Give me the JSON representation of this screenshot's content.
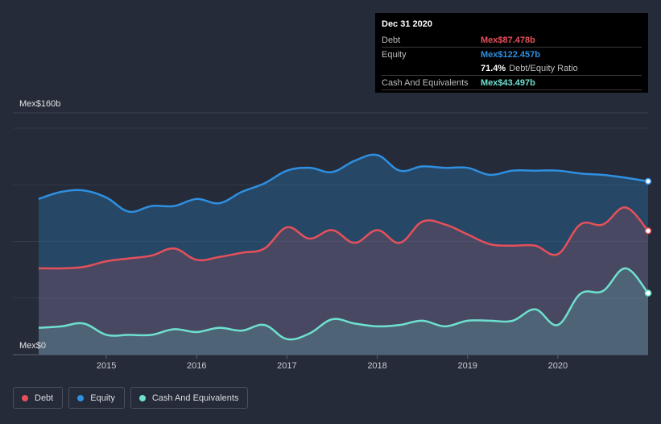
{
  "tooltip": {
    "date": "Dec 31 2020",
    "debt_label": "Debt",
    "debt_value": "Mex$87.478b",
    "equity_label": "Equity",
    "equity_value": "Mex$122.457b",
    "ratio_value": "71.4%",
    "ratio_label": "Debt/Equity Ratio",
    "cash_label": "Cash And Equivalents",
    "cash_value": "Mex$43.497b"
  },
  "legend": [
    {
      "label": "Debt",
      "color": "#e6505a"
    },
    {
      "label": "Equity",
      "color": "#2f8fe0"
    },
    {
      "label": "Cash And Equivalents",
      "color": "#6ee0d0"
    }
  ],
  "colors": {
    "debt": "#e6505a",
    "equity": "#2f8fe0",
    "cash": "#6ee0d0"
  },
  "chart_data": {
    "type": "area",
    "title": "",
    "xlabel": "",
    "ylabel": "",
    "ylim": [
      0,
      160
    ],
    "y_tick_labels": [
      "Mex$0",
      "Mex$160b"
    ],
    "x_ticks": [
      2015,
      2016,
      2017,
      2018,
      2019,
      2020
    ],
    "x_tick_labels": [
      "2015",
      "2016",
      "2017",
      "2018",
      "2019",
      "2020"
    ],
    "xlim": [
      2014.25,
      2021.0
    ],
    "series": [
      {
        "name": "Equity",
        "x": [
          2014.25,
          2014.5,
          2014.75,
          2015.0,
          2015.25,
          2015.5,
          2015.75,
          2016.0,
          2016.25,
          2016.5,
          2016.75,
          2017.0,
          2017.25,
          2017.5,
          2017.75,
          2018.0,
          2018.25,
          2018.5,
          2018.75,
          2019.0,
          2019.25,
          2019.5,
          2019.75,
          2020.0,
          2020.25,
          2020.5,
          2020.75,
          2021.0
        ],
        "values": [
          110,
          115,
          116,
          111,
          101,
          105,
          105,
          110,
          107,
          115,
          121,
          130,
          132,
          129,
          137,
          141,
          130,
          133,
          132,
          132,
          127,
          130,
          130,
          130,
          128,
          127,
          125,
          122.457
        ]
      },
      {
        "name": "Debt",
        "x": [
          2014.25,
          2014.5,
          2014.75,
          2015.0,
          2015.25,
          2015.5,
          2015.75,
          2016.0,
          2016.25,
          2016.5,
          2016.75,
          2017.0,
          2017.25,
          2017.5,
          2017.75,
          2018.0,
          2018.25,
          2018.5,
          2018.75,
          2019.0,
          2019.25,
          2019.5,
          2019.75,
          2020.0,
          2020.25,
          2020.5,
          2020.75,
          2021.0
        ],
        "values": [
          61,
          61,
          62,
          66,
          68,
          70,
          75,
          67,
          69,
          72,
          75,
          90,
          82,
          88,
          79,
          88,
          79,
          94,
          92,
          85,
          78,
          77,
          77,
          71,
          92,
          92,
          104,
          87.478
        ]
      },
      {
        "name": "Cash And Equivalents",
        "x": [
          2014.25,
          2014.5,
          2014.75,
          2015.0,
          2015.25,
          2015.5,
          2015.75,
          2016.0,
          2016.25,
          2016.5,
          2016.75,
          2017.0,
          2017.25,
          2017.5,
          2017.75,
          2018.0,
          2018.25,
          2018.5,
          2018.75,
          2019.0,
          2019.25,
          2019.5,
          2019.75,
          2020.0,
          2020.25,
          2020.5,
          2020.75,
          2021.0
        ],
        "values": [
          19,
          20,
          22,
          14,
          14,
          14,
          18,
          16,
          19,
          17,
          21,
          11,
          15,
          25,
          22,
          20,
          21,
          24,
          20,
          24,
          24,
          24,
          32,
          21,
          43,
          45,
          61,
          43.497
        ]
      }
    ],
    "legend_position": "bottom-left",
    "grid": true
  }
}
